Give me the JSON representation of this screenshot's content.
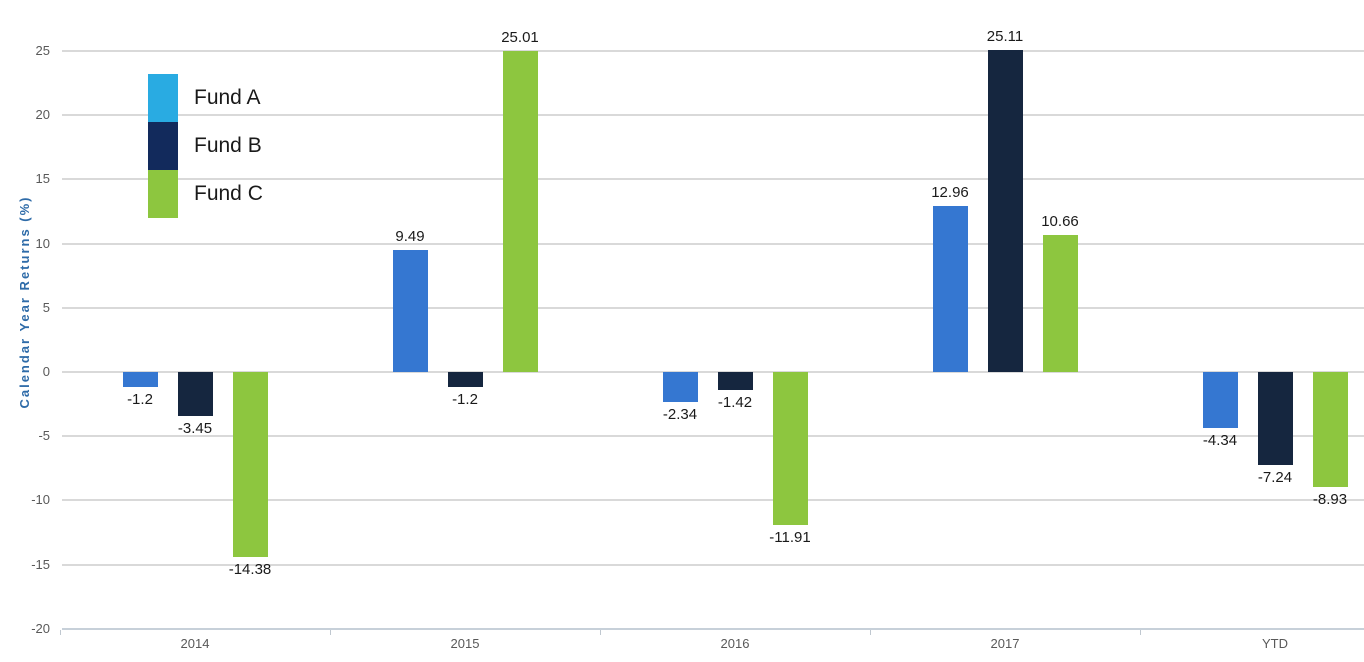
{
  "chart_data": {
    "type": "bar",
    "title": "",
    "xlabel": "",
    "ylabel": "Calendar Year Returns (%)",
    "categories": [
      "2014",
      "2015",
      "2016",
      "2017",
      "YTD"
    ],
    "series": [
      {
        "name": "Fund A",
        "legend_color": "#29ABE2",
        "bar_color": "#3577D1",
        "values": [
          -1.2,
          9.49,
          -2.34,
          12.96,
          -4.34
        ]
      },
      {
        "name": "Fund B",
        "legend_color": "#122A5C",
        "bar_color": "#15263F",
        "values": [
          -3.45,
          -1.2,
          -1.42,
          25.11,
          -7.24
        ]
      },
      {
        "name": "Fund C",
        "legend_color": "#8DC63F",
        "bar_color": "#8DC63F",
        "values": [
          -14.38,
          25.01,
          -11.91,
          10.66,
          -8.93
        ]
      }
    ],
    "ylim": [
      -20,
      25
    ],
    "ytick_step": 5,
    "grid": true,
    "legend_position": "top-left"
  },
  "colors": {
    "grid": "#D9D9D9",
    "axis_line": "#C7D0D9",
    "axis_tick": "#C0C8D0",
    "tick_label": "#595959",
    "value_label": "#1A1A1A",
    "legend_label": "#1A1A1A",
    "axis_title": "#2E6BA8",
    "background": "#FFFFFF"
  }
}
